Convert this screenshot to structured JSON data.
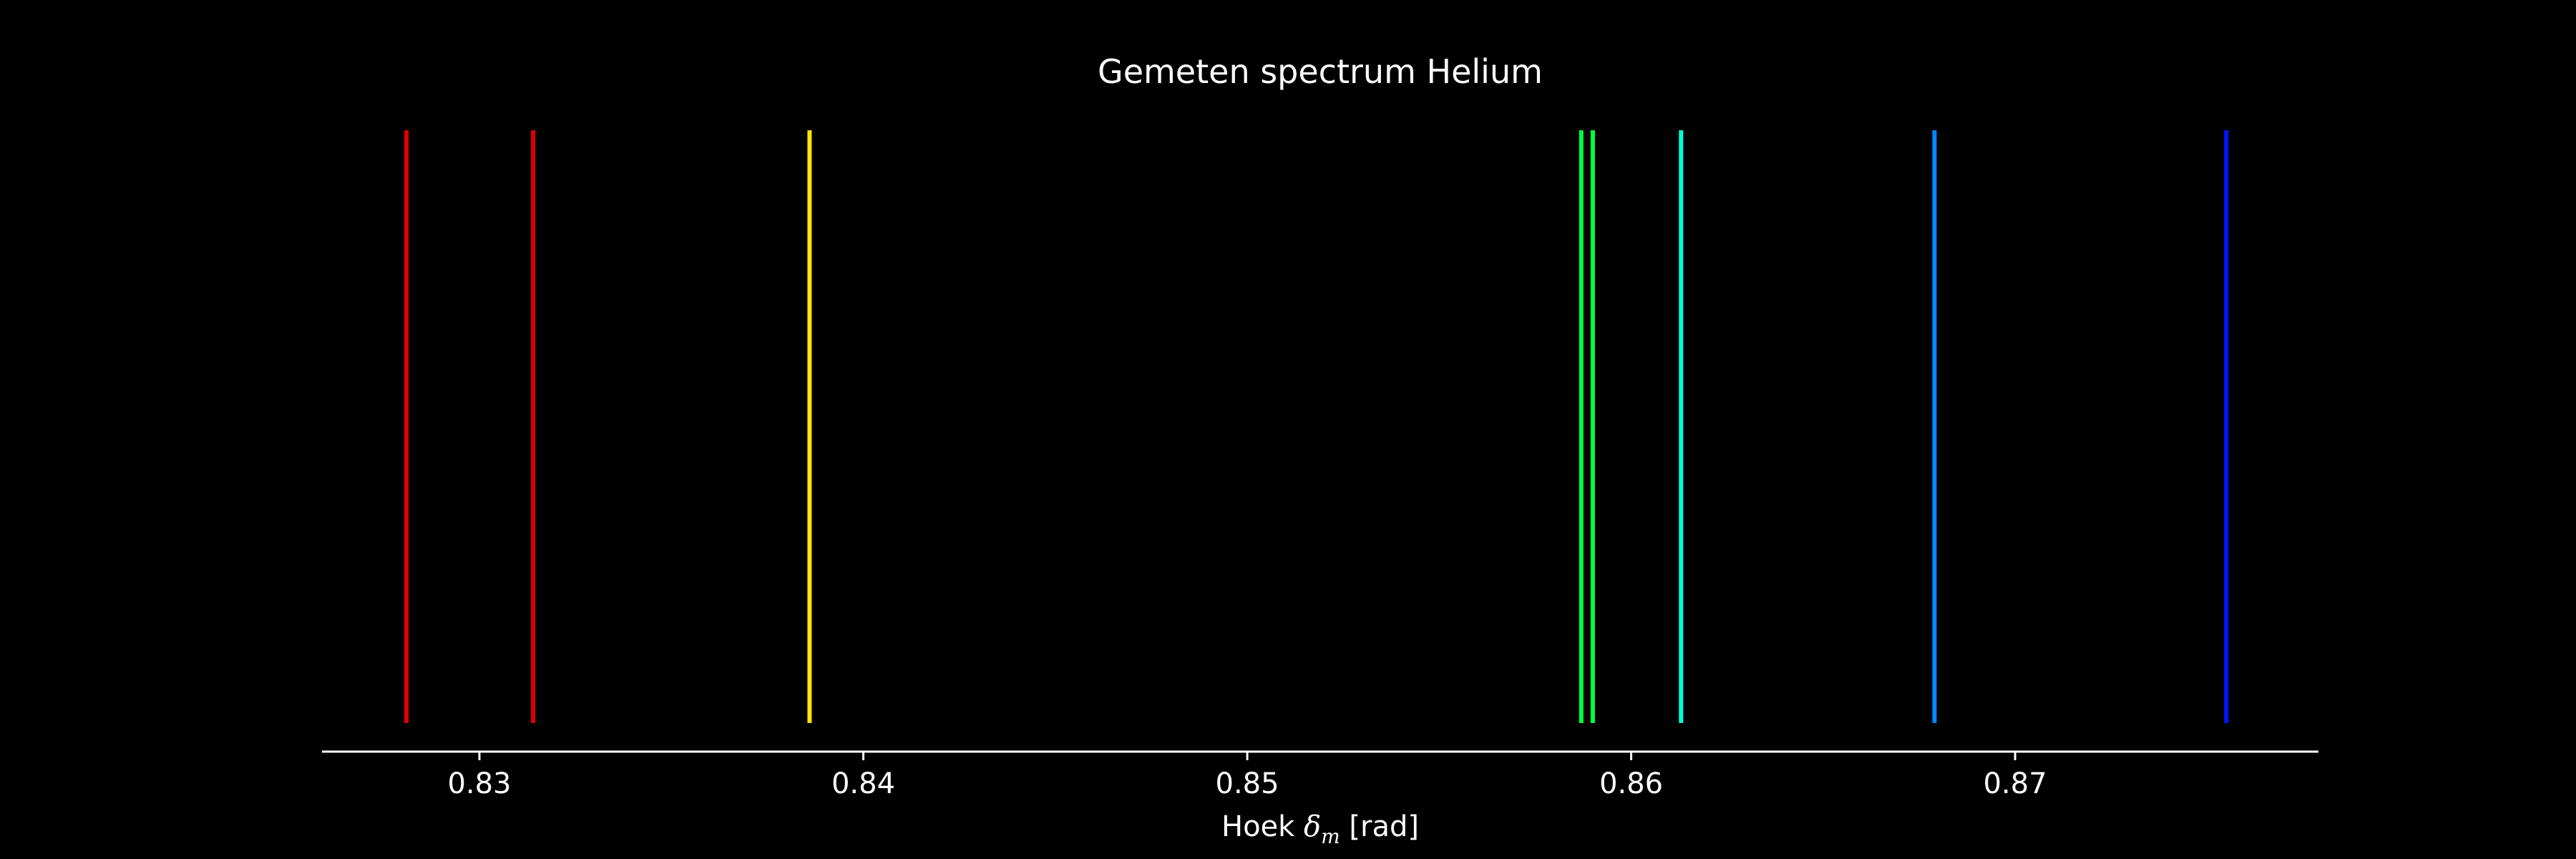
{
  "chart_data": {
    "type": "bar",
    "title": "Gemeten spectrum Helium",
    "xlabel": {
      "prefix": "Hoek ",
      "symbol": "δ",
      "subscript": "m",
      "suffix": " [rad]"
    },
    "ylabel": "",
    "xlim": [
      0.8259,
      0.8779
    ],
    "ticks": [
      {
        "value": 0.83,
        "label": "0.83"
      },
      {
        "value": 0.84,
        "label": "0.84"
      },
      {
        "value": 0.85,
        "label": "0.85"
      },
      {
        "value": 0.86,
        "label": "0.86"
      },
      {
        "value": 0.87,
        "label": "0.87"
      }
    ],
    "grid": false,
    "background_color": "#000000",
    "lines": [
      {
        "x": 0.8281,
        "color": "#e00000"
      },
      {
        "x": 0.8314,
        "color": "#e00000"
      },
      {
        "x": 0.8386,
        "color": "#ffe600"
      },
      {
        "x": 0.8587,
        "color": "#00ff40"
      },
      {
        "x": 0.859,
        "color": "#00ff40"
      },
      {
        "x": 0.8613,
        "color": "#00ffd5"
      },
      {
        "x": 0.8679,
        "color": "#0088ff"
      },
      {
        "x": 0.8755,
        "color": "#0015ff"
      }
    ]
  }
}
